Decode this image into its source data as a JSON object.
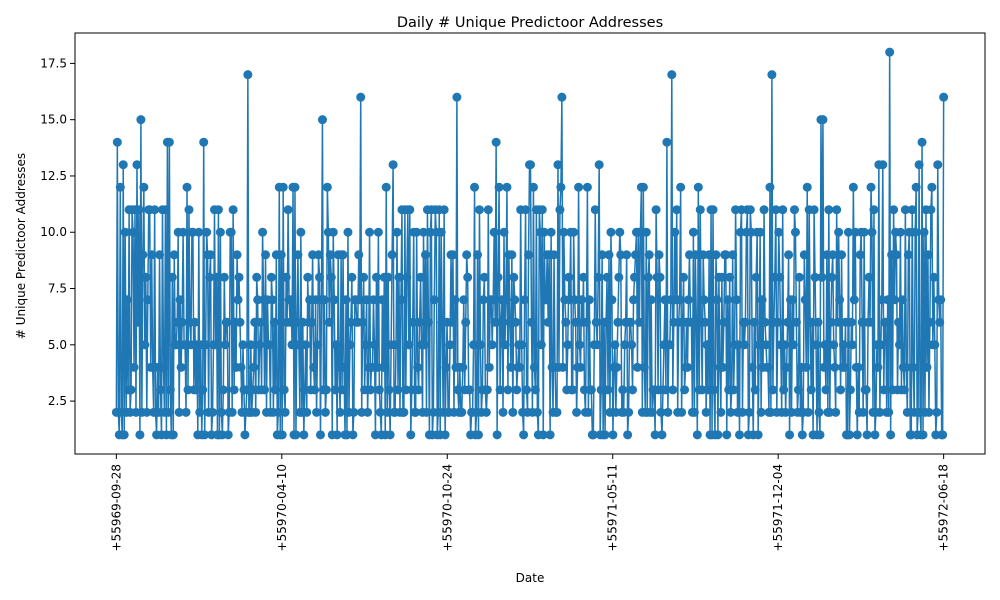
{
  "chart_data": {
    "type": "line",
    "title": "Daily # Unique Predictoor Addresses",
    "xlabel": "Date",
    "ylabel": "# Unique Predictoor Addresses",
    "x_tick_labels": [
      "+55969-09-28",
      "+55970-04-10",
      "+55970-10-24",
      "+55971-05-11",
      "+55971-12-04",
      "+55972-06-18"
    ],
    "x_tick_positions": [
      0,
      4,
      8,
      12,
      16,
      20
    ],
    "y_ticks": [
      2.5,
      5.0,
      7.5,
      10.0,
      12.5,
      15.0,
      17.5
    ],
    "y_tick_labels": [
      "2.5",
      "5.0",
      "7.5",
      "10.0",
      "12.5",
      "15.0",
      "17.5"
    ],
    "xlim": [
      -1.0,
      21.0
    ],
    "ylim": [
      0.15,
      18.85
    ],
    "grid": false,
    "line_color": "#1f77b4",
    "marker": "circle",
    "series": [
      {
        "name": "",
        "y": [
          2,
          14,
          2,
          1,
          12,
          2,
          1,
          13,
          1,
          10,
          2,
          7,
          3,
          11,
          2,
          3,
          11,
          10,
          4,
          11,
          2,
          13,
          6,
          11,
          1,
          15,
          2,
          9,
          12,
          5,
          8,
          2,
          7,
          11,
          11,
          4,
          9,
          4,
          2,
          11,
          2,
          1,
          4,
          2,
          9,
          3,
          1,
          11,
          4,
          2,
          11,
          1,
          14,
          2,
          14,
          3,
          1,
          8,
          1,
          9,
          5,
          5,
          6,
          10,
          2,
          7,
          4,
          6,
          10,
          5,
          5,
          2,
          12,
          3,
          11,
          6,
          5,
          10,
          10,
          3,
          6,
          3,
          5,
          1,
          10,
          2,
          5,
          1,
          3,
          14,
          1,
          5,
          10,
          9,
          2,
          8,
          9,
          1,
          2,
          5,
          11,
          5,
          8,
          1,
          11,
          1,
          10,
          2,
          1,
          3,
          8,
          5,
          6,
          6,
          1,
          2,
          10,
          10,
          2,
          11,
          3,
          6,
          4,
          9,
          7,
          8,
          6,
          4,
          2,
          5,
          3,
          1,
          2,
          3,
          17,
          2,
          2,
          5,
          2,
          3,
          4,
          6,
          2,
          8,
          7,
          3,
          5,
          6,
          3,
          10,
          7,
          3,
          9,
          2,
          7,
          5,
          5,
          2,
          8,
          7,
          2,
          6,
          3,
          9,
          1,
          2,
          12,
          1,
          9,
          1,
          12,
          3,
          2,
          8,
          6,
          11,
          7,
          6,
          7,
          5,
          12,
          1,
          12,
          1,
          6,
          9,
          5,
          2,
          10,
          2,
          6,
          1,
          3,
          5,
          2,
          8,
          6,
          7,
          3,
          6,
          9,
          4,
          3,
          7,
          2,
          5,
          9,
          8,
          1,
          7,
          15,
          3,
          7,
          2,
          3,
          12,
          10,
          6,
          9,
          8,
          1,
          10,
          7,
          3,
          5,
          1,
          9,
          4,
          2,
          9,
          3,
          9,
          4,
          1,
          7,
          1,
          10,
          2,
          5,
          6,
          8,
          1,
          2,
          7,
          7,
          6,
          6,
          9,
          7,
          16,
          2,
          6,
          8,
          3,
          5,
          7,
          2,
          4,
          10,
          3,
          4,
          4,
          7,
          5,
          1,
          8,
          4,
          10,
          3,
          2,
          1,
          7,
          4,
          8,
          1,
          12,
          2,
          8,
          3,
          1,
          5,
          9,
          13,
          2,
          2,
          5,
          10,
          3,
          8,
          2,
          7,
          11,
          2,
          2,
          11,
          3,
          8,
          11,
          5,
          11,
          1,
          3,
          6,
          10,
          2,
          2,
          10,
          4,
          3,
          6,
          8,
          5,
          2,
          10,
          5,
          9,
          2,
          11,
          6,
          1,
          10,
          11,
          1,
          2,
          7,
          11,
          10,
          1,
          2,
          11,
          1,
          10,
          6,
          2,
          11,
          1,
          4,
          6,
          2,
          2,
          5,
          9,
          6,
          9,
          2,
          7,
          4,
          16,
          3,
          2,
          4,
          2,
          2,
          4,
          7,
          3,
          6,
          9,
          8,
          3,
          3,
          1,
          2,
          2,
          5,
          12,
          1,
          2,
          9,
          1,
          11,
          5,
          2,
          3,
          7,
          8,
          3,
          2,
          3,
          11,
          4,
          7,
          7,
          5,
          7,
          10,
          6,
          14,
          1,
          8,
          12,
          3,
          6,
          7,
          2,
          10,
          5,
          7,
          12,
          3,
          9,
          6,
          4,
          9,
          2,
          8,
          7,
          6,
          3,
          4,
          5,
          4,
          11,
          5,
          2,
          1,
          7,
          11,
          3,
          2,
          9,
          13,
          13,
          6,
          2,
          12,
          4,
          3,
          11,
          2,
          1,
          11,
          10,
          5,
          11,
          1,
          10,
          7,
          7,
          9,
          6,
          9,
          1,
          10,
          4,
          2,
          9,
          4,
          2,
          2,
          13,
          4,
          11,
          12,
          16,
          4,
          10,
          7,
          6,
          3,
          5,
          8,
          7,
          10,
          3,
          3,
          10,
          7,
          6,
          2,
          4,
          12,
          5,
          4,
          7,
          6,
          8,
          3,
          2,
          6,
          12,
          2,
          7,
          3,
          3,
          1,
          1,
          5,
          11,
          6,
          5,
          8,
          13,
          1,
          3,
          9,
          1,
          6,
          1,
          6,
          8,
          3,
          9,
          2,
          10,
          7,
          1,
          4,
          5,
          2,
          4,
          6,
          8,
          10,
          9,
          2,
          3,
          2,
          5,
          6,
          9,
          1,
          2,
          6,
          6,
          5,
          3,
          7,
          8,
          9,
          10,
          4,
          10,
          6,
          10,
          12,
          2,
          12,
          4,
          2,
          10,
          2,
          8,
          9,
          2,
          7,
          2,
          3,
          3,
          1,
          11,
          8,
          3,
          9,
          8,
          2,
          1,
          3,
          5,
          7,
          3,
          14,
          2,
          5,
          5,
          7,
          17,
          3,
          6,
          10,
          7,
          11,
          2,
          6,
          7,
          12,
          2,
          6,
          8,
          3,
          4,
          6,
          4,
          7,
          9,
          6,
          6,
          2,
          10,
          2,
          9,
          6,
          1,
          12,
          3,
          11,
          6,
          3,
          9,
          7,
          6,
          2,
          5,
          3,
          9,
          1,
          11,
          1,
          11,
          3,
          1,
          9,
          7,
          1,
          8,
          4,
          2,
          8,
          4,
          6,
          9,
          9,
          1,
          7,
          3,
          8,
          2,
          3,
          9,
          3,
          5,
          11,
          7,
          2,
          5,
          1,
          10,
          11,
          2,
          6,
          5,
          6,
          10,
          11,
          1,
          2,
          11,
          10,
          4,
          1,
          6,
          3,
          8,
          10,
          1,
          5,
          10,
          2,
          7,
          4,
          11,
          6,
          5,
          4,
          4,
          2,
          12,
          2,
          17,
          3,
          6,
          8,
          11,
          2,
          6,
          10,
          8,
          5,
          2,
          11,
          3,
          5,
          2,
          4,
          6,
          9,
          1,
          7,
          2,
          7,
          5,
          11,
          10,
          6,
          2,
          3,
          8,
          2,
          4,
          1,
          2,
          9,
          7,
          4,
          12,
          2,
          11,
          6,
          3,
          6,
          1,
          11,
          8,
          5,
          1,
          6,
          2,
          1,
          15,
          8,
          15,
          4,
          5,
          3,
          9,
          2,
          11,
          2,
          6,
          8,
          9,
          5,
          4,
          2,
          11,
          6,
          10,
          7,
          3,
          9,
          4,
          5,
          4,
          6,
          1,
          1,
          10,
          1,
          3,
          6,
          5,
          12,
          7,
          10,
          4,
          1,
          4,
          2,
          9,
          10,
          6,
          2,
          10,
          3,
          3,
          1,
          6,
          8,
          6,
          12,
          10,
          2,
          11,
          1,
          2,
          5,
          4,
          13,
          2,
          5,
          7,
          13,
          3,
          6,
          6,
          2,
          7,
          2,
          18,
          1,
          9,
          3,
          11,
          7,
          10,
          9,
          3,
          6,
          5,
          10,
          3,
          7,
          4,
          3,
          11,
          4,
          2,
          9,
          10,
          1,
          1,
          11,
          4,
          2,
          10,
          12,
          1,
          2,
          13,
          2,
          1,
          14,
          1,
          10,
          2,
          11,
          4,
          9,
          2,
          6,
          11,
          12,
          5,
          8,
          5,
          1,
          2,
          13,
          7,
          6,
          7,
          1,
          1,
          16
        ]
      }
    ]
  }
}
